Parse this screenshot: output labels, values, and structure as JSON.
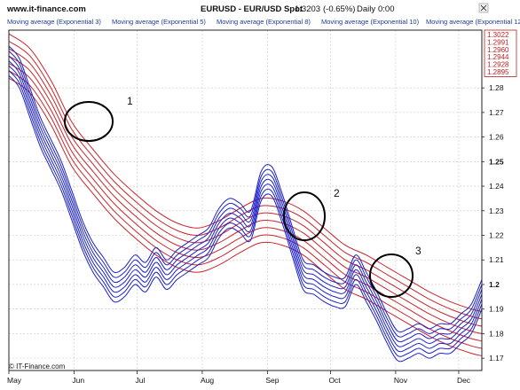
{
  "header": {
    "site": "www.it-finance.com",
    "symbol": "EURUSD - EUR/USD Spot",
    "price": "1.3203",
    "change": "(-0.65%)",
    "timeframe": "Daily",
    "time": "0:00"
  },
  "legend": [
    "Moving average (Exponential 3)",
    "Moving average (Exponential 5)",
    "Moving average (Exponential 8)",
    "Moving average (Exponential 10)",
    "Moving average (Exponential 12)",
    "Moving average (Exponential 15)"
  ],
  "copyright": "© IT-Finance.com",
  "colors": {
    "short_group": "#1c22c8",
    "long_group": "#c8242a",
    "grid": "#c8c8c8",
    "frame": "#222222"
  },
  "chart_data": {
    "type": "line",
    "y_ticks": [
      "1.17",
      "1.18",
      "1.19",
      "1.2",
      "1.21",
      "1.22",
      "1.23",
      "1.24",
      "1.25",
      "1.26",
      "1.27",
      "1.28"
    ],
    "price_labels": [
      "1.3022",
      "1.2991",
      "1.2960",
      "1.2944",
      "1.2928",
      "1.2895"
    ],
    "ylim": [
      1.165,
      1.3035
    ],
    "x_labels": [
      "May",
      "Jun",
      "Jul",
      "Aug",
      "Sep",
      "Oct",
      "Nov",
      "Dec"
    ],
    "xlim": [
      0,
      225
    ],
    "x_label_positions": [
      0,
      31,
      61,
      92,
      123,
      153,
      184,
      214
    ],
    "grid": true,
    "series_groups": {
      "short": {
        "label": "Moving averages (Exponential 3–15)",
        "color": "#1c22c8",
        "x": [
          0,
          5,
          10,
          15,
          20,
          25,
          30,
          35,
          40,
          45,
          50,
          55,
          60,
          65,
          70,
          75,
          80,
          85,
          90,
          95,
          100,
          105,
          110,
          115,
          120,
          125,
          130,
          135,
          140,
          145,
          150,
          155,
          160,
          165,
          170,
          175,
          180,
          185,
          190,
          195,
          200,
          205,
          210,
          215,
          220,
          225
        ],
        "base": [
          1.291,
          1.286,
          1.274,
          1.262,
          1.253,
          1.244,
          1.232,
          1.22,
          1.211,
          1.205,
          1.199,
          1.201,
          1.206,
          1.203,
          1.209,
          1.204,
          1.208,
          1.211,
          1.214,
          1.217,
          1.225,
          1.229,
          1.227,
          1.224,
          1.24,
          1.242,
          1.231,
          1.217,
          1.204,
          1.202,
          1.199,
          1.197,
          1.197,
          1.206,
          1.199,
          1.191,
          1.182,
          1.175,
          1.176,
          1.178,
          1.176,
          1.178,
          1.178,
          1.182,
          1.186,
          1.196
        ],
        "offsets": [
          0.006,
          0.004,
          0.002,
          0.0,
          -0.002,
          -0.004,
          -0.006
        ]
      },
      "long": {
        "label": "Moving averages (long group)",
        "color": "#c8242a",
        "x": [
          0,
          10,
          20,
          30,
          40,
          50,
          60,
          70,
          80,
          90,
          100,
          110,
          120,
          130,
          140,
          150,
          160,
          170,
          180,
          190,
          200,
          210,
          220,
          225
        ],
        "base": [
          1.296,
          1.29,
          1.277,
          1.26,
          1.249,
          1.239,
          1.231,
          1.224,
          1.219,
          1.217,
          1.22,
          1.225,
          1.229,
          1.228,
          1.224,
          1.217,
          1.21,
          1.206,
          1.201,
          1.196,
          1.191,
          1.187,
          1.184,
          1.183
        ],
        "offsets": [
          0.006,
          0.003,
          0.0,
          -0.003,
          -0.006,
          -0.009,
          -0.012
        ]
      }
    },
    "annotations": [
      {
        "label": "1",
        "x": 33,
        "y": 1.269
      },
      {
        "label": "2",
        "x": 133,
        "y": 1.23
      },
      {
        "label": "3",
        "x": 182,
        "y": 1.205
      }
    ]
  }
}
